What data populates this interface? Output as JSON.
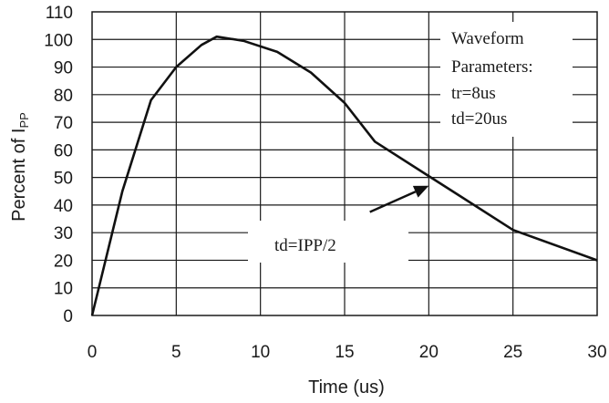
{
  "chart_data": {
    "type": "line",
    "xlabel": "Time (us)",
    "ylabel_main": "Percent of I",
    "ylabel_sub": "PP",
    "xlim": [
      0,
      30
    ],
    "ylim": [
      0,
      110
    ],
    "xticks": [
      0,
      5,
      10,
      15,
      20,
      25,
      30
    ],
    "yticks": [
      0,
      10,
      20,
      30,
      40,
      50,
      60,
      70,
      80,
      90,
      100,
      110
    ],
    "grid": true,
    "series": [
      {
        "x": [
          0,
          1.8,
          3.5,
          5,
          6.5,
          7.4,
          9,
          11,
          13,
          15,
          16.8,
          20,
          25,
          30
        ],
        "y": [
          0,
          45,
          78,
          90,
          98,
          101,
          99.5,
          95.5,
          88,
          77,
          63,
          50.5,
          31,
          20
        ]
      }
    ],
    "annotations": {
      "params_box": [
        "Waveform",
        "Parameters:",
        "tr=8us",
        "td=20us"
      ],
      "td_label": "td=IPP/2",
      "arrow_target": {
        "x": 20.0,
        "y": 47
      },
      "arrow_tail": {
        "x": 16.5,
        "y": 37.5
      }
    }
  }
}
